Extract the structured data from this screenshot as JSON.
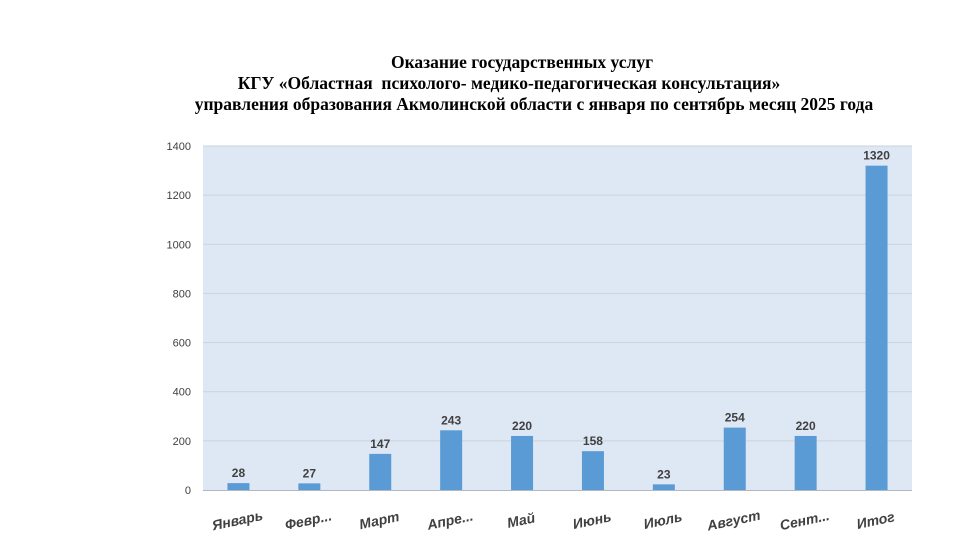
{
  "chart_data": {
    "type": "bar",
    "title": "Оказание государственных услуг\nКГУ «Областная  психолого- медико-педагогическая консультация»\nуправления образования Акмолинской области с января по сентябрь месяц 2025 года",
    "title_lines": [
      "Оказание государственных услуг",
      "КГУ «Областная  психолого- медико-педагогическая консультация»",
      "управления образования Акмолинской области с января по сентябрь месяц 2025 года"
    ],
    "categories": [
      "Январь",
      "Февр...",
      "Март",
      "Апре...",
      "Май",
      "Июнь",
      "Июль",
      "Август",
      "Сент...",
      "Итог"
    ],
    "values": [
      28,
      27,
      147,
      243,
      220,
      158,
      23,
      254,
      220,
      1320
    ],
    "yticks": [
      0,
      200,
      400,
      600,
      800,
      1000,
      1200,
      1400
    ],
    "ylim": [
      0,
      1400
    ],
    "xlabel": "",
    "ylabel": "",
    "grid": true,
    "legend": "none",
    "colors": {
      "bar": "#5b9bd5",
      "plot_background": "#dde8f4",
      "gridline": "#c9d3de",
      "text": "#404040"
    }
  }
}
